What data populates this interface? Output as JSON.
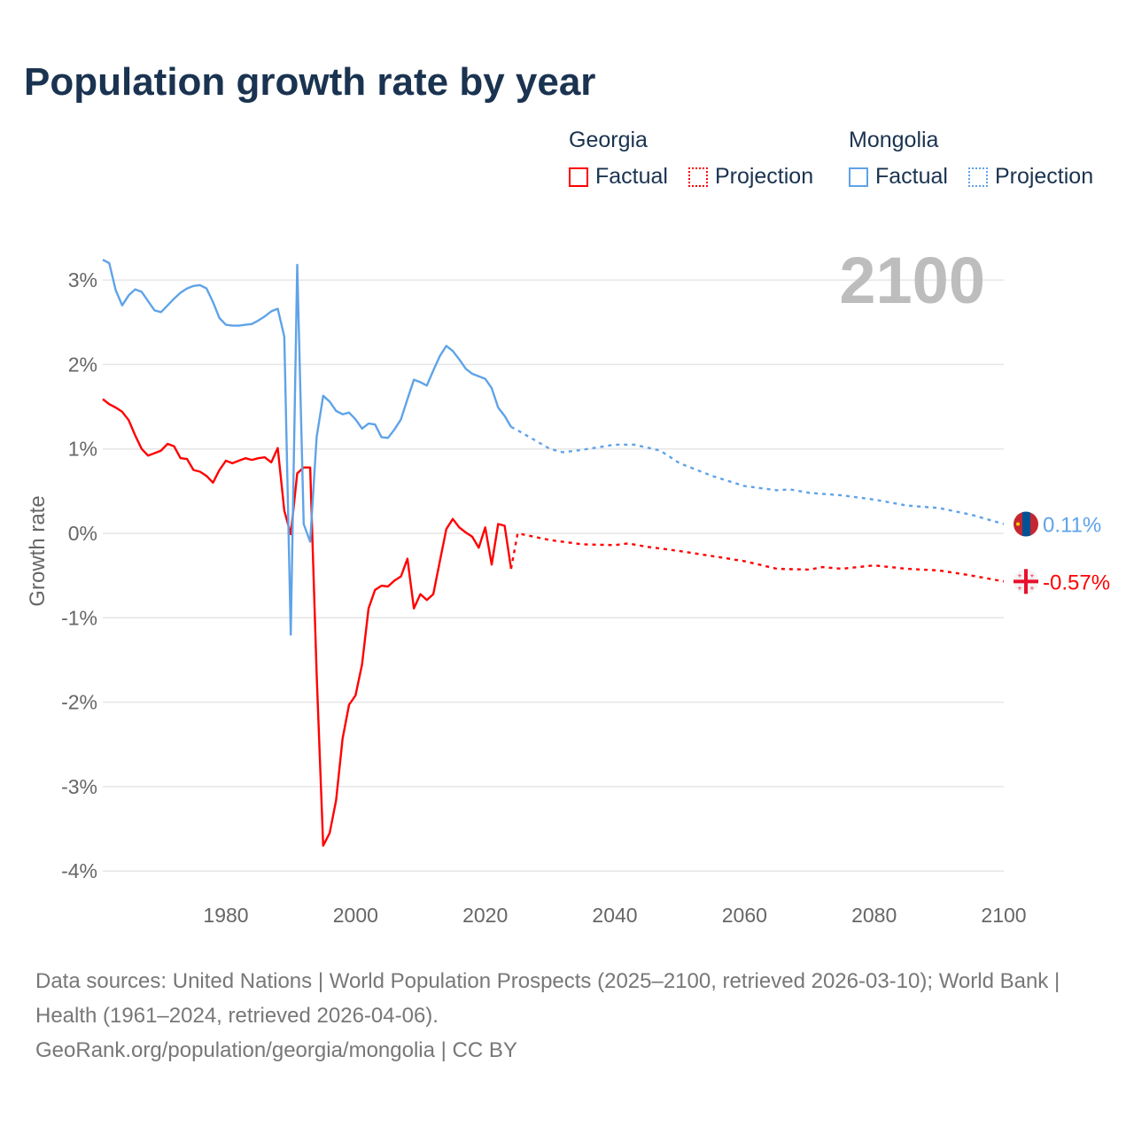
{
  "title": "Population growth rate by year",
  "legend": {
    "groups": [
      {
        "name": "Georgia",
        "factual_label": "Factual",
        "projection_label": "Projection",
        "color": "#ff0000"
      },
      {
        "name": "Mongolia",
        "factual_label": "Factual",
        "projection_label": "Projection",
        "color": "#5fa3e8"
      }
    ]
  },
  "chart_data": {
    "type": "line",
    "title": "Population growth rate by year",
    "xlabel": "",
    "ylabel": "Growth rate",
    "xlim": [
      1961,
      2100
    ],
    "ylim": [
      -4.2,
      3.3
    ],
    "x_ticks": [
      1980,
      2000,
      2020,
      2040,
      2060,
      2080,
      2100
    ],
    "x_tick_labels": [
      "1980",
      "2000",
      "2020",
      "2040",
      "2060",
      "2080",
      "2100"
    ],
    "y_ticks": [
      3,
      2,
      1,
      0,
      -1,
      -2,
      -3,
      -4
    ],
    "y_tick_labels": [
      "3%",
      "2%",
      "1%",
      "0%",
      "-1%",
      "-2%",
      "-3%",
      "-4%"
    ],
    "grid": true,
    "year_watermark": "2100",
    "series": [
      {
        "name": "Georgia Factual",
        "country": "Georgia",
        "kind": "factual",
        "color": "#ff0000",
        "start_year": 1961,
        "values": [
          1.59,
          1.53,
          1.49,
          1.44,
          1.34,
          1.16,
          1.0,
          0.92,
          0.95,
          0.98,
          1.06,
          1.03,
          0.89,
          0.88,
          0.75,
          0.73,
          0.68,
          0.6,
          0.75,
          0.86,
          0.83,
          0.86,
          0.89,
          0.87,
          0.89,
          0.9,
          0.84,
          1.01,
          0.27,
          -0.01,
          0.71,
          0.78,
          0.78,
          -1.66,
          -3.7,
          -3.55,
          -3.16,
          -2.43,
          -2.03,
          -1.92,
          -1.55,
          -0.89,
          -0.67,
          -0.62,
          -0.63,
          -0.56,
          -0.51,
          -0.3,
          -0.89,
          -0.72,
          -0.79,
          -0.72,
          -0.33,
          0.05,
          0.17,
          0.07,
          0.01,
          -0.04,
          -0.17,
          0.07,
          -0.37,
          0.11,
          0.09,
          -0.42
        ]
      },
      {
        "name": "Georgia Projection",
        "country": "Georgia",
        "kind": "projection",
        "color": "#ff0000",
        "x": [
          2024,
          2025,
          2030,
          2035,
          2040,
          2042,
          2045,
          2050,
          2055,
          2060,
          2065,
          2070,
          2072,
          2075,
          2080,
          2085,
          2090,
          2095,
          2100
        ],
        "values": [
          -0.42,
          0.0,
          -0.08,
          -0.13,
          -0.14,
          -0.12,
          -0.16,
          -0.21,
          -0.27,
          -0.33,
          -0.42,
          -0.43,
          -0.4,
          -0.42,
          -0.38,
          -0.42,
          -0.44,
          -0.5,
          -0.57
        ]
      },
      {
        "name": "Mongolia Factual",
        "country": "Mongolia",
        "kind": "factual",
        "color": "#5fa3e8",
        "start_year": 1961,
        "values": [
          3.24,
          3.2,
          2.88,
          2.7,
          2.82,
          2.89,
          2.86,
          2.75,
          2.64,
          2.62,
          2.7,
          2.78,
          2.85,
          2.9,
          2.93,
          2.94,
          2.9,
          2.74,
          2.55,
          2.47,
          2.46,
          2.46,
          2.47,
          2.48,
          2.52,
          2.57,
          2.63,
          2.66,
          2.33,
          -1.2,
          3.18,
          0.11,
          -0.1,
          1.14,
          1.63,
          1.56,
          1.45,
          1.41,
          1.43,
          1.35,
          1.24,
          1.3,
          1.29,
          1.14,
          1.13,
          1.23,
          1.35,
          1.59,
          1.82,
          1.79,
          1.75,
          1.93,
          2.1,
          2.22,
          2.16,
          2.06,
          1.95,
          1.89,
          1.86,
          1.83,
          1.72,
          1.49,
          1.39,
          1.26
        ]
      },
      {
        "name": "Mongolia Projection",
        "country": "Mongolia",
        "kind": "projection",
        "color": "#5fa3e8",
        "x": [
          2024,
          2025,
          2030,
          2032,
          2035,
          2040,
          2043,
          2047,
          2050,
          2055,
          2060,
          2065,
          2067,
          2070,
          2075,
          2080,
          2085,
          2090,
          2095,
          2100
        ],
        "values": [
          1.26,
          1.22,
          1.0,
          0.96,
          0.99,
          1.05,
          1.05,
          0.98,
          0.83,
          0.68,
          0.56,
          0.51,
          0.52,
          0.48,
          0.45,
          0.4,
          0.33,
          0.3,
          0.22,
          0.11
        ]
      }
    ],
    "end_labels": [
      {
        "country": "Mongolia",
        "text": "0.11%",
        "value": 0.11,
        "color": "#5fa3e8",
        "flag": "mongolia-flag-icon"
      },
      {
        "country": "Georgia",
        "text": "-0.57%",
        "value": -0.57,
        "color": "#ff0000",
        "flag": "georgia-flag-icon"
      }
    ]
  },
  "footer": {
    "sources": "Data sources: United Nations | World Population Prospects (2025–2100, retrieved 2026-03-10); World Bank | Health (1961–2024, retrieved 2026-04-06).",
    "link": "GeoRank.org/population/georgia/mongolia | CC BY"
  }
}
